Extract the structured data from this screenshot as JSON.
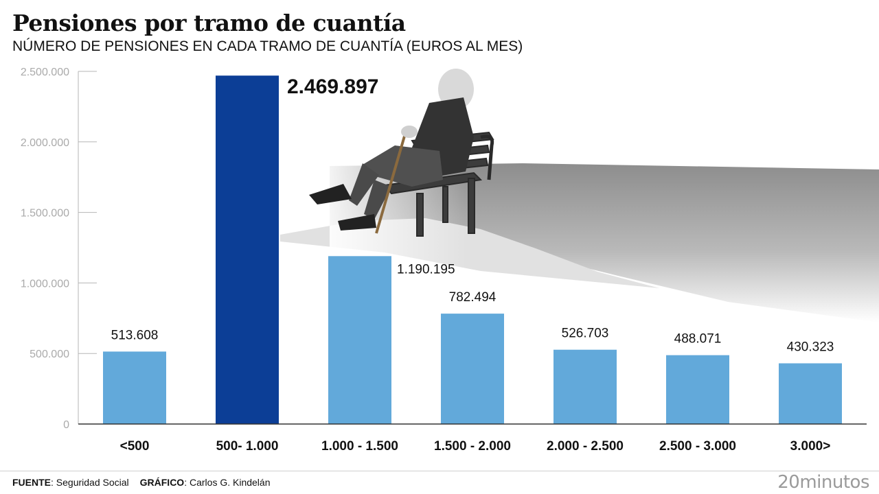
{
  "title": "Pensiones por tramo de cuantía",
  "subtitle": "NÚMERO DE PENSIONES EN CADA TRAMO DE CUANTÍA (EUROS AL MES)",
  "footer": {
    "source_label": "FUENTE",
    "source_value": ": Seguridad Social",
    "graphic_label": "GRÁFICO",
    "graphic_value": ": Carlos G. Kindelán",
    "brand": "20minutos"
  },
  "colors": {
    "bar": "#62a9da",
    "highlight_bar": "#0c3e96",
    "axis_text": "#aaaaaa",
    "label_text": "#111111"
  },
  "chart_data": {
    "type": "bar",
    "categories": [
      "<500",
      "500- 1.000",
      "1.000 - 1.500",
      "1.500 - 2.000",
      "2.000 - 2.500",
      "2.500 - 3.000",
      "3.000>"
    ],
    "values": [
      513608,
      2469897,
      1190195,
      782494,
      526703,
      488071,
      430323
    ],
    "value_labels": [
      "513.608",
      "2.469.897",
      "1.190.195",
      "782.494",
      "526.703",
      "488.071",
      "430.323"
    ],
    "highlight_index": 1,
    "ylim": [
      0,
      2500000
    ],
    "yticks": [
      0,
      500000,
      1000000,
      1500000,
      2000000,
      2500000
    ],
    "ytick_labels": [
      "0",
      "500.000",
      "1.000.000",
      "1.500.000",
      "2.000.000",
      "2.500.000"
    ],
    "grid": false
  }
}
